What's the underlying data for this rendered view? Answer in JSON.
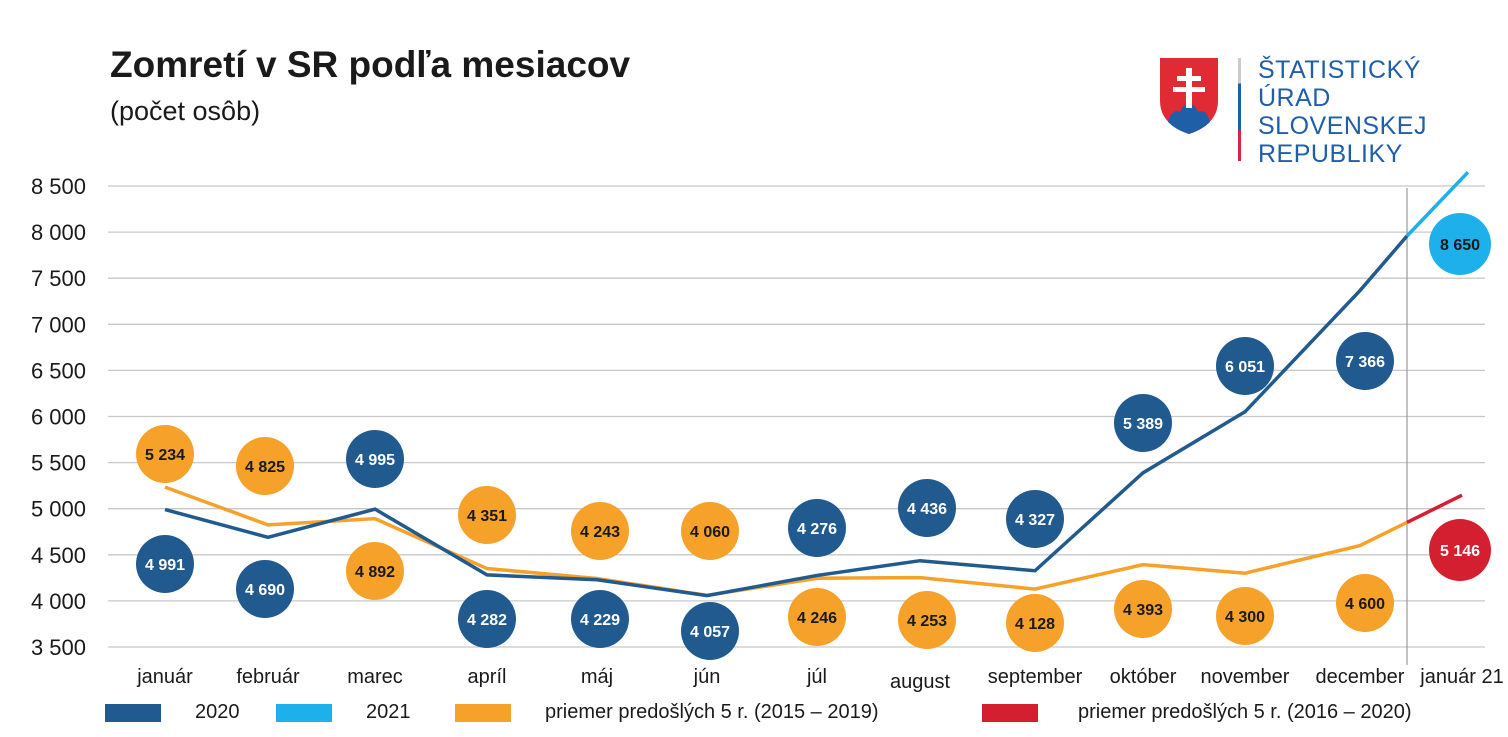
{
  "title": "Zomretí v SR podľa mesiacov",
  "subtitle": "(počet osôb)",
  "logo": {
    "lines": [
      "ŠTATISTICKÝ",
      "ÚRAD",
      "SLOVENSKEJ",
      "REPUBLIKY"
    ]
  },
  "chart_data": {
    "type": "line",
    "title": "Zomretí v SR podľa mesiacov",
    "subtitle": "(počet osôb)",
    "categories": [
      "január",
      "február",
      "marec",
      "apríl",
      "máj",
      "jún",
      "júl",
      "august",
      "september",
      "október",
      "november",
      "december",
      "január 21"
    ],
    "ylim": [
      3500,
      8500
    ],
    "yticks": [
      3500,
      4000,
      4500,
      5000,
      5500,
      6000,
      6500,
      7000,
      7500,
      8000,
      8500
    ],
    "ytick_labels": [
      "3 500",
      "4 000",
      "4 500",
      "5 000",
      "5 500",
      "6 000",
      "6 500",
      "7 000",
      "7 500",
      "8 000",
      "8 500"
    ],
    "grid": true,
    "legend_position": "bottom",
    "series": [
      {
        "name": "2020",
        "color": "#215a8f",
        "values": [
          4991,
          4690,
          4995,
          4282,
          4229,
          4057,
          4276,
          4436,
          4327,
          5389,
          6051,
          7366,
          null
        ],
        "labels": [
          "4 991",
          "4 690",
          "4 995",
          "4 282",
          "4 229",
          "4 057",
          "4 276",
          "4 436",
          "4 327",
          "5 389",
          "6 051",
          "7 366",
          null
        ]
      },
      {
        "name": "2021",
        "color": "#1db0ea",
        "values": [
          null,
          null,
          null,
          null,
          null,
          null,
          null,
          null,
          null,
          null,
          null,
          null,
          8650
        ],
        "labels": [
          null,
          null,
          null,
          null,
          null,
          null,
          null,
          null,
          null,
          null,
          null,
          null,
          "8 650"
        ]
      },
      {
        "name": "priemer predošlých 5 r. (2015 – 2019)",
        "color": "#f5a12a",
        "values": [
          5234,
          4825,
          4892,
          4351,
          4243,
          4060,
          4246,
          4253,
          4128,
          4393,
          4300,
          4600,
          null
        ],
        "labels": [
          "5 234",
          "4 825",
          "4 892",
          "4 351",
          "4 243",
          "4 060",
          "4 246",
          "4 253",
          "4 128",
          "4 393",
          "4 300",
          "4 600",
          null
        ]
      },
      {
        "name": "priemer predošlých 5 r. (2016 – 2020)",
        "color": "#d41f30",
        "values": [
          null,
          null,
          null,
          null,
          null,
          null,
          null,
          null,
          null,
          null,
          null,
          null,
          5146
        ],
        "labels": [
          null,
          null,
          null,
          null,
          null,
          null,
          null,
          null,
          null,
          null,
          null,
          null,
          "5 146"
        ]
      }
    ]
  }
}
